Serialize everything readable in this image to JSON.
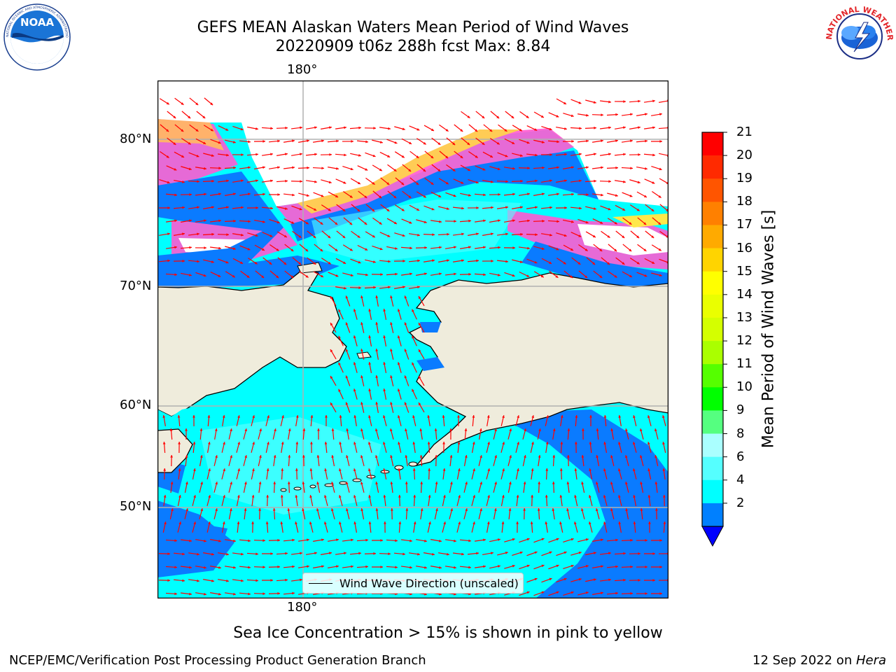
{
  "header": {
    "title_line1": "GEFS MEAN Alaskan Waters Mean Period of Wind Waves",
    "title_line2": "20220909 t06z 288h fcst   Max: 8.84"
  },
  "logos": {
    "left": "NOAA",
    "left_ring_text": "NATIONAL OCEANIC AND ATMOSPHERIC ADMINISTRATION · U.S. DEPARTMENT OF COMMERCE",
    "right_ring_text": "NATIONAL WEATHER SERVICE"
  },
  "map": {
    "lon_top_label": "180°",
    "lon_bottom_label": "180°",
    "lat_labels": [
      "80°N",
      "70°N",
      "60°N",
      "50°N"
    ],
    "legend_text": "Wind Wave Direction (unscaled)",
    "colors": {
      "land": "#efecdc",
      "water_low": "#0a7bff",
      "water_mid": "#00ffff",
      "ice_pink": "#ff5ad2",
      "ice_yellow": "#ffe84a",
      "arrow": "#ff0000"
    }
  },
  "colorbar": {
    "label": "Mean Period of Wind Waves [s]",
    "ticks": [
      "21",
      "20",
      "19",
      "18",
      "17",
      "16",
      "15",
      "14",
      "13",
      "12",
      "11",
      "10",
      "9",
      "8",
      "6",
      "4",
      "2"
    ],
    "colors": [
      "#ff0000",
      "#ff2a00",
      "#ff5500",
      "#ff8000",
      "#ffaa00",
      "#ffd400",
      "#ffff00",
      "#eaff00",
      "#d4ff00",
      "#aaff00",
      "#55ff00",
      "#00ff00",
      "#55ff80",
      "#aaffff",
      "#55ffff",
      "#00ffff",
      "#0080ff"
    ],
    "under_color": "#0000ff"
  },
  "footer": {
    "ice_note": "Sea Ice Concentration > 15% is shown in pink to yellow",
    "left": "NCEP/EMC/Verification Post Processing Product Generation Branch",
    "right_date": "12 Sep 2022 on ",
    "right_machine": "Hera"
  }
}
